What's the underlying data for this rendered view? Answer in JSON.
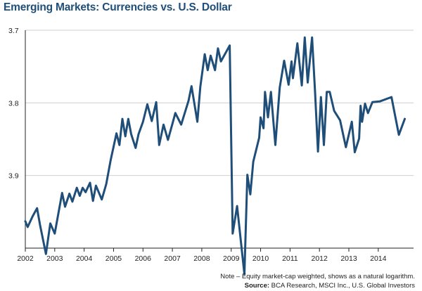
{
  "chart_data": {
    "type": "line",
    "title": "Emerging Markets: Currencies vs. U.S. Dollar",
    "xlabel": "",
    "ylabel": "",
    "y_scale": "log",
    "y_axis_inverted": true,
    "y_ticks": [
      "3.7",
      "3.8",
      "3.9"
    ],
    "ylim": [
      3.7,
      4.0
    ],
    "x_ticks": [
      "2002",
      "2003",
      "2004",
      "2005",
      "2006",
      "2007",
      "2008",
      "2009",
      "2010",
      "2011",
      "2012",
      "2013",
      "2014"
    ],
    "xlim": [
      2002,
      2015.2
    ],
    "grid": "horizontal",
    "line_color": "#1f4e79",
    "series": [
      {
        "x": [
          2002.0,
          2002.08,
          2002.25,
          2002.4,
          2002.5,
          2002.7,
          2002.85,
          2003.0,
          2003.25,
          2003.35,
          2003.5,
          2003.6,
          2003.75,
          2003.85,
          2003.95,
          2004.05,
          2004.2,
          2004.3,
          2004.4,
          2004.6,
          2004.75,
          2004.9,
          2005.1,
          2005.2,
          2005.3,
          2005.4,
          2005.5,
          2005.6,
          2005.75,
          2005.85,
          2006.0,
          2006.15,
          2006.3,
          2006.45,
          2006.55,
          2006.7,
          2006.85,
          2007.0,
          2007.1,
          2007.3,
          2007.55,
          2007.65,
          2007.85,
          2007.95,
          2008.1,
          2008.2,
          2008.3,
          2008.45,
          2008.55,
          2008.65,
          2008.95,
          2009.05,
          2009.2,
          2009.45,
          2009.55,
          2009.65,
          2009.75,
          2009.95,
          2010.0,
          2010.1,
          2010.15,
          2010.25,
          2010.35,
          2010.5,
          2010.65,
          2010.8,
          2010.95,
          2011.05,
          2011.1,
          2011.25,
          2011.4,
          2011.5,
          2011.6,
          2011.75,
          2011.85,
          2011.95,
          2012.05,
          2012.15,
          2012.25,
          2012.35,
          2012.5,
          2012.7,
          2012.9,
          2013.1,
          2013.2,
          2013.35,
          2013.4,
          2013.45,
          2013.55,
          2013.65,
          2013.8,
          2014.05,
          2014.45,
          2014.7,
          2014.9
        ],
        "values": [
          3.963,
          3.971,
          3.956,
          3.945,
          3.968,
          4.008,
          3.966,
          3.98,
          3.924,
          3.943,
          3.925,
          3.936,
          3.917,
          3.928,
          3.917,
          3.923,
          3.91,
          3.935,
          3.914,
          3.933,
          3.912,
          3.879,
          3.842,
          3.858,
          3.822,
          3.846,
          3.822,
          3.843,
          3.862,
          3.843,
          3.826,
          3.802,
          3.825,
          3.799,
          3.858,
          3.83,
          3.851,
          3.829,
          3.814,
          3.83,
          3.797,
          3.777,
          3.826,
          3.778,
          3.733,
          3.755,
          3.735,
          3.755,
          3.725,
          3.743,
          3.721,
          3.98,
          3.942,
          4.036,
          3.899,
          3.926,
          3.881,
          3.848,
          3.82,
          3.835,
          3.785,
          3.82,
          3.785,
          3.858,
          3.779,
          3.742,
          3.775,
          3.743,
          3.766,
          3.718,
          3.776,
          3.71,
          3.772,
          3.71,
          3.784,
          3.867,
          3.792,
          3.858,
          3.785,
          3.785,
          3.811,
          3.824,
          3.861,
          3.826,
          3.868,
          3.849,
          3.804,
          3.826,
          3.801,
          3.814,
          3.799,
          3.798,
          3.792,
          3.844,
          3.822
        ]
      }
    ]
  },
  "footer": {
    "note": "Note – Equity market-cap weighted, shows as a natural logarithm.",
    "source_label": "Source:",
    "source_text": " BCA Research, MSCI Inc., U.S. Global Investors"
  }
}
